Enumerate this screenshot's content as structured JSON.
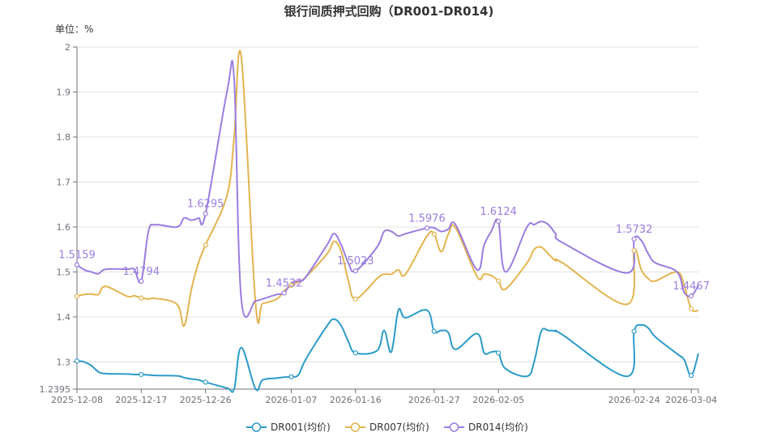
{
  "chart_data": {
    "type": "line",
    "title": "银行间质押式回购（DR001-DR014)",
    "unit_label": "单位：%",
    "ylim": [
      1.2395,
      2
    ],
    "y_ticks": [
      {
        "value": 1.2395,
        "label": "1.2395"
      },
      {
        "value": 1.3,
        "label": "1.3"
      },
      {
        "value": 1.4,
        "label": "1.4"
      },
      {
        "value": 1.5,
        "label": "1.5"
      },
      {
        "value": 1.6,
        "label": "1.6"
      },
      {
        "value": 1.7,
        "label": "1.7"
      },
      {
        "value": 1.8,
        "label": "1.8"
      },
      {
        "value": 1.9,
        "label": "1.9"
      },
      {
        "value": 2,
        "label": "2"
      }
    ],
    "x_start": "2025-12-08",
    "x_end": "2026-03-05",
    "x_ticks": [
      "2025-12-08",
      "2025-12-17",
      "2025-12-26",
      "2026-01-07",
      "2026-01-16",
      "2026-01-27",
      "2026-02-05",
      "2026-02-24",
      "2026-03-04"
    ],
    "grid": true,
    "legend_position": "bottom",
    "series": [
      {
        "name": "DR001(均价)",
        "color": "#2c9bc8",
        "points": [
          [
            "2025-12-08",
            1.302
          ],
          [
            "2025-12-09",
            1.3
          ],
          [
            "2025-12-10",
            1.292
          ],
          [
            "2025-12-11",
            1.278
          ],
          [
            "2025-12-12",
            1.274
          ],
          [
            "2025-12-15",
            1.273
          ],
          [
            "2025-12-16",
            1.272
          ],
          [
            "2025-12-17",
            1.272
          ],
          [
            "2025-12-18",
            1.271
          ],
          [
            "2025-12-19",
            1.27
          ],
          [
            "2025-12-22",
            1.269
          ],
          [
            "2025-12-23",
            1.265
          ],
          [
            "2025-12-24",
            1.262
          ],
          [
            "2025-12-25",
            1.26
          ],
          [
            "2025-12-26",
            1.255
          ],
          [
            "2025-12-29",
            1.242
          ],
          [
            "2025-12-30",
            1.24
          ],
          [
            "2025-12-31",
            1.332
          ],
          [
            "2026-01-02",
            1.24
          ],
          [
            "2026-01-03",
            1.26
          ],
          [
            "2026-01-05",
            1.264
          ],
          [
            "2026-01-06",
            1.266
          ],
          [
            "2026-01-07",
            1.267
          ],
          [
            "2026-01-08",
            1.271
          ],
          [
            "2026-01-09",
            1.305
          ],
          [
            "2026-01-12",
            1.38
          ],
          [
            "2026-01-13",
            1.395
          ],
          [
            "2026-01-14",
            1.38
          ],
          [
            "2026-01-15",
            1.345
          ],
          [
            "2026-01-16",
            1.32
          ],
          [
            "2026-01-19",
            1.325
          ],
          [
            "2026-01-20",
            1.37
          ],
          [
            "2026-01-21",
            1.322
          ],
          [
            "2026-01-22",
            1.415
          ],
          [
            "2026-01-23",
            1.398
          ],
          [
            "2026-01-26",
            1.415
          ],
          [
            "2026-01-27",
            1.368
          ],
          [
            "2026-01-28",
            1.37
          ],
          [
            "2026-01-29",
            1.365
          ],
          [
            "2026-01-30",
            1.328
          ],
          [
            "2026-02-02",
            1.363
          ],
          [
            "2026-02-03",
            1.32
          ],
          [
            "2026-02-04",
            1.322
          ],
          [
            "2026-02-05",
            1.32
          ],
          [
            "2026-02-06",
            1.285
          ],
          [
            "2026-02-09",
            1.268
          ],
          [
            "2026-02-10",
            1.3
          ],
          [
            "2026-02-11",
            1.368
          ],
          [
            "2026-02-12",
            1.37
          ],
          [
            "2026-02-13",
            1.368
          ],
          [
            "2026-02-14",
            1.36
          ],
          [
            "2026-02-23",
            1.268
          ],
          [
            "2026-02-24",
            1.368
          ],
          [
            "2026-02-25",
            1.382
          ],
          [
            "2026-02-26",
            1.375
          ],
          [
            "2026-02-27",
            1.355
          ],
          [
            "2026-03-02",
            1.318
          ],
          [
            "2026-03-03",
            1.305
          ],
          [
            "2026-03-04",
            1.27
          ],
          [
            "2026-03-05",
            1.319
          ]
        ],
        "labels": []
      },
      {
        "name": "DR007(均价)",
        "color": "#e3b44f",
        "points": [
          [
            "2025-12-08",
            1.446
          ],
          [
            "2025-12-09",
            1.45
          ],
          [
            "2025-12-10",
            1.451
          ],
          [
            "2025-12-11",
            1.45
          ],
          [
            "2025-12-12",
            1.468
          ],
          [
            "2025-12-15",
            1.446
          ],
          [
            "2025-12-16",
            1.447
          ],
          [
            "2025-12-17",
            1.442
          ],
          [
            "2025-12-18",
            1.44
          ],
          [
            "2025-12-19",
            1.441
          ],
          [
            "2025-12-22",
            1.428
          ],
          [
            "2025-12-23",
            1.38
          ],
          [
            "2025-12-24",
            1.46
          ],
          [
            "2025-12-25",
            1.52
          ],
          [
            "2025-12-26",
            1.56
          ],
          [
            "2025-12-29",
            1.67
          ],
          [
            "2025-12-30",
            1.8
          ],
          [
            "2025-12-31",
            1.978
          ],
          [
            "2026-01-02",
            1.43
          ],
          [
            "2026-01-03",
            1.43
          ],
          [
            "2026-01-05",
            1.44
          ],
          [
            "2026-01-06",
            1.458
          ],
          [
            "2026-01-07",
            1.47
          ],
          [
            "2026-01-08",
            1.478
          ],
          [
            "2026-01-09",
            1.488
          ],
          [
            "2026-01-12",
            1.54
          ],
          [
            "2026-01-13",
            1.568
          ],
          [
            "2026-01-14",
            1.545
          ],
          [
            "2026-01-15",
            1.48
          ],
          [
            "2026-01-16",
            1.44
          ],
          [
            "2026-01-19",
            1.485
          ],
          [
            "2026-01-20",
            1.495
          ],
          [
            "2026-01-21",
            1.495
          ],
          [
            "2026-01-22",
            1.505
          ],
          [
            "2026-01-23",
            1.495
          ],
          [
            "2026-01-26",
            1.58
          ],
          [
            "2026-01-27",
            1.584
          ],
          [
            "2026-01-28",
            1.545
          ],
          [
            "2026-01-29",
            1.584
          ],
          [
            "2026-01-30",
            1.598
          ],
          [
            "2026-02-02",
            1.49
          ],
          [
            "2026-02-03",
            1.495
          ],
          [
            "2026-02-04",
            1.492
          ],
          [
            "2026-02-05",
            1.48
          ],
          [
            "2026-02-06",
            1.462
          ],
          [
            "2026-02-09",
            1.52
          ],
          [
            "2026-02-10",
            1.55
          ],
          [
            "2026-02-11",
            1.555
          ],
          [
            "2026-02-12",
            1.54
          ],
          [
            "2026-02-13",
            1.525
          ],
          [
            "2026-02-14",
            1.52
          ],
          [
            "2026-02-23",
            1.428
          ],
          [
            "2026-02-24",
            1.548
          ],
          [
            "2026-02-25",
            1.505
          ],
          [
            "2026-02-26",
            1.485
          ],
          [
            "2026-02-27",
            1.48
          ],
          [
            "2026-03-02",
            1.5
          ],
          [
            "2026-03-03",
            1.47
          ],
          [
            "2026-03-04",
            1.418
          ],
          [
            "2026-03-05",
            1.414
          ]
        ],
        "labels": []
      },
      {
        "name": "DR014(均价)",
        "color": "#9b7de0",
        "points": [
          [
            "2025-12-08",
            1.5159
          ],
          [
            "2025-12-09",
            1.505
          ],
          [
            "2025-12-10",
            1.5
          ],
          [
            "2025-12-11",
            1.496
          ],
          [
            "2025-12-12",
            1.506
          ],
          [
            "2025-12-15",
            1.506
          ],
          [
            "2025-12-16",
            1.506
          ],
          [
            "2025-12-17",
            1.4794
          ],
          [
            "2025-12-18",
            1.59
          ],
          [
            "2025-12-19",
            1.605
          ],
          [
            "2025-12-22",
            1.6
          ],
          [
            "2025-12-23",
            1.62
          ],
          [
            "2025-12-24",
            1.615
          ],
          [
            "2025-12-25",
            1.62
          ],
          [
            "2025-12-26",
            1.6295
          ],
          [
            "2025-12-29",
            1.9
          ],
          [
            "2025-12-30",
            1.928
          ],
          [
            "2025-12-31",
            1.44
          ],
          [
            "2026-01-02",
            1.436
          ],
          [
            "2026-01-03",
            1.44
          ],
          [
            "2026-01-05",
            1.45
          ],
          [
            "2026-01-06",
            1.4532
          ],
          [
            "2026-01-07",
            1.475
          ],
          [
            "2026-01-08",
            1.48
          ],
          [
            "2026-01-09",
            1.488
          ],
          [
            "2026-01-12",
            1.56
          ],
          [
            "2026-01-13",
            1.585
          ],
          [
            "2026-01-14",
            1.56
          ],
          [
            "2026-01-15",
            1.52
          ],
          [
            "2026-01-16",
            1.5023
          ],
          [
            "2026-01-19",
            1.555
          ],
          [
            "2026-01-20",
            1.59
          ],
          [
            "2026-01-21",
            1.59
          ],
          [
            "2026-01-22",
            1.58
          ],
          [
            "2026-01-23",
            1.585
          ],
          [
            "2026-01-26",
            1.5976
          ],
          [
            "2026-01-27",
            1.598
          ],
          [
            "2026-01-28",
            1.59
          ],
          [
            "2026-01-29",
            1.595
          ],
          [
            "2026-01-30",
            1.605
          ],
          [
            "2026-02-02",
            1.505
          ],
          [
            "2026-02-03",
            1.56
          ],
          [
            "2026-02-04",
            1.59
          ],
          [
            "2026-02-05",
            1.6124
          ],
          [
            "2026-02-06",
            1.5
          ],
          [
            "2026-02-09",
            1.6
          ],
          [
            "2026-02-10",
            1.605
          ],
          [
            "2026-02-11",
            1.612
          ],
          [
            "2026-02-12",
            1.605
          ],
          [
            "2026-02-13",
            1.585
          ],
          [
            "2026-02-14",
            1.565
          ],
          [
            "2026-02-23",
            1.498
          ],
          [
            "2026-02-24",
            1.5732
          ],
          [
            "2026-02-25",
            1.57
          ],
          [
            "2026-02-26",
            1.54
          ],
          [
            "2026-02-27",
            1.52
          ],
          [
            "2026-03-02",
            1.5
          ],
          [
            "2026-03-03",
            1.455
          ],
          [
            "2026-03-04",
            1.4467
          ],
          [
            "2026-03-05",
            1.47
          ]
        ],
        "labels": [
          {
            "date": "2025-12-08",
            "text": "1.5159"
          },
          {
            "date": "2025-12-17",
            "text": "1.4794"
          },
          {
            "date": "2025-12-26",
            "text": "1.6295"
          },
          {
            "date": "2026-01-06",
            "text": "1.4532"
          },
          {
            "date": "2026-01-16",
            "text": "1.5023"
          },
          {
            "date": "2026-01-26",
            "text": "1.5976"
          },
          {
            "date": "2026-02-05",
            "text": "1.6124"
          },
          {
            "date": "2026-02-24",
            "text": "1.5732"
          },
          {
            "date": "2026-03-04",
            "text": "1.4467"
          }
        ]
      }
    ],
    "markers": {
      "DR001(均价)": [
        "2025-12-08",
        "2025-12-17",
        "2025-12-26",
        "2026-01-07",
        "2026-01-16",
        "2026-01-27",
        "2026-02-05",
        "2026-02-24",
        "2026-03-04"
      ],
      "DR007(均价)": [
        "2025-12-08",
        "2025-12-17",
        "2025-12-26",
        "2026-01-07",
        "2026-01-16",
        "2026-01-27",
        "2026-02-05",
        "2026-02-24",
        "2026-03-04"
      ],
      "DR014(均价)": [
        "2025-12-08",
        "2025-12-17",
        "2025-12-26",
        "2026-01-06",
        "2026-01-16",
        "2026-01-26",
        "2026-02-05",
        "2026-02-24",
        "2026-03-04"
      ]
    }
  }
}
